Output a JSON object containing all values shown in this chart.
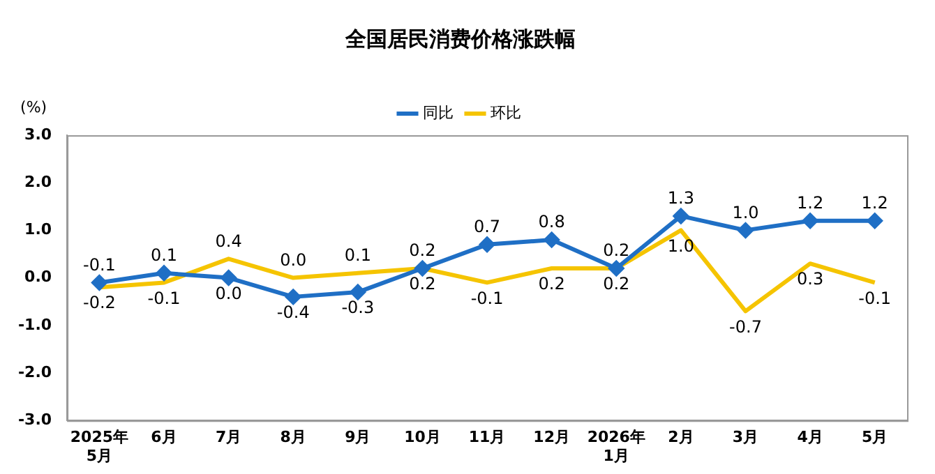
{
  "chart_data": {
    "type": "line",
    "title": "全国居民消费价格涨跌幅",
    "ylabel": "(%)",
    "categories": [
      "2025年\n5月",
      "6月",
      "7月",
      "8月",
      "9月",
      "10月",
      "11月",
      "12月",
      "2026年\n1月",
      "2月",
      "3月",
      "4月",
      "5月"
    ],
    "series": [
      {
        "name": "同比",
        "color": "#1f6fc5",
        "marker": "diamond",
        "values": [
          -0.1,
          0.1,
          0.0,
          -0.4,
          -0.3,
          0.2,
          0.7,
          0.8,
          0.2,
          1.3,
          1.0,
          1.2,
          1.2
        ],
        "value_labels": [
          "-0.1",
          "0.1",
          "0.0",
          "-0.4",
          "-0.3",
          "0.2",
          "0.7",
          "0.8",
          "0.2",
          "1.3",
          "1.0",
          "1.2",
          "1.2"
        ]
      },
      {
        "name": "环比",
        "color": "#f5c400",
        "marker": "none",
        "values": [
          -0.2,
          -0.1,
          0.4,
          0.0,
          0.1,
          0.2,
          -0.1,
          0.2,
          0.2,
          1.0,
          -0.7,
          0.3,
          -0.1
        ],
        "value_labels": [
          "-0.2",
          "-0.1",
          "0.4",
          "0.0",
          "0.1",
          "0.2",
          "-0.1",
          "0.2",
          "0.2",
          "1.0",
          "-0.7",
          "0.3",
          "-0.1"
        ]
      }
    ],
    "ylim": [
      -3,
      3
    ],
    "yticks": [
      {
        "value": -3,
        "label": "-3.0"
      },
      {
        "value": -2,
        "label": "-2.0"
      },
      {
        "value": -1,
        "label": "-1.0"
      },
      {
        "value": 0,
        "label": "0.0"
      },
      {
        "value": 1,
        "label": "1.0"
      },
      {
        "value": 2,
        "label": "2.0"
      },
      {
        "value": 3,
        "label": "3.0"
      }
    ],
    "grid": false,
    "legend": "top",
    "line_style": "solid"
  }
}
